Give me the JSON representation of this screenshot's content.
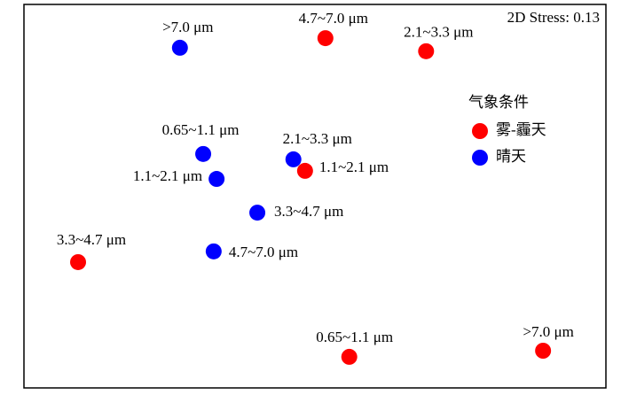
{
  "chart_data": {
    "type": "scatter",
    "annotation": "2D Stress: 0.13",
    "legend_title": "气象条件",
    "legend_position": "right",
    "xlim": [
      0,
      100
    ],
    "ylim": [
      0,
      100
    ],
    "series": [
      {
        "name": "雾-霾天",
        "color": "#ff0000",
        "x": [
          51.8,
          69.1,
          48.3,
          9.3,
          55.9,
          89.2
        ],
        "y": [
          91.2,
          87.8,
          56.6,
          32.8,
          8.1,
          9.7
        ],
        "labels": [
          "4.7~7.0 μm",
          "2.1~3.3 μm",
          "1.1~2.1 μm",
          "3.3~4.7 μm",
          "0.65~1.1 μm",
          ">7.0 μm"
        ]
      },
      {
        "name": "晴天",
        "color": "#0000ff",
        "x": [
          26.8,
          30.8,
          33.1,
          46.3,
          40.1,
          32.6
        ],
        "y": [
          88.7,
          61.0,
          54.5,
          59.6,
          45.7,
          35.6
        ],
        "labels": [
          ">7.0 μm",
          "0.65~1.1 μm",
          "1.1~2.1 μm",
          "2.1~3.3 μm",
          "3.3~4.7 μm",
          "4.7~7.0 μm"
        ]
      }
    ]
  }
}
